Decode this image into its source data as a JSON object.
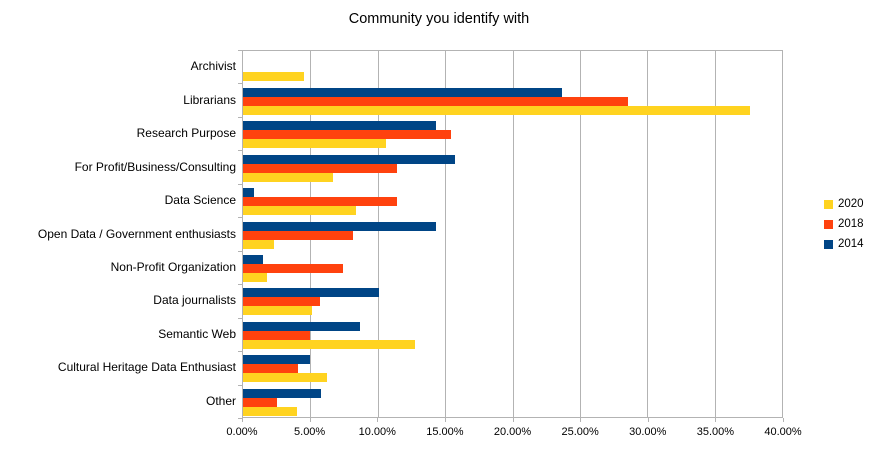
{
  "chart_data": {
    "type": "bar",
    "orientation": "horizontal",
    "title": "Community you identify with",
    "categories": [
      "Archivist",
      "Librarians",
      "Research Purpose",
      "For Profit/Business/Consulting",
      "Data Science",
      "Open Data / Government enthusiasts",
      "Non-Profit Organization",
      "Data journalists",
      "Semantic Web",
      "Cultural Heritage Data Enthusiast",
      "Other"
    ],
    "series": [
      {
        "name": "2020",
        "color": "#FFD320",
        "values": [
          4.5,
          37.6,
          10.6,
          6.7,
          8.4,
          2.3,
          1.8,
          5.1,
          12.8,
          6.2,
          4.0
        ]
      },
      {
        "name": "2018",
        "color": "#FF420E",
        "values": [
          0,
          28.6,
          15.4,
          11.4,
          11.4,
          8.2,
          7.4,
          5.7,
          5.0,
          4.1,
          2.5
        ]
      },
      {
        "name": "2014",
        "color": "#004586",
        "values": [
          0,
          23.7,
          14.3,
          15.7,
          0.8,
          14.3,
          1.5,
          10.1,
          8.7,
          5.0,
          5.8
        ]
      }
    ],
    "bar_draw_order": [
      "2014",
      "2018",
      "2020"
    ],
    "x_axis": {
      "min": 0,
      "max": 40,
      "tick_step": 5,
      "tick_labels": [
        "0.00%",
        "5.00%",
        "10.00%",
        "15.00%",
        "20.00%",
        "25.00%",
        "30.00%",
        "35.00%",
        "40.00%"
      ]
    },
    "legend": {
      "position": "right",
      "entries": [
        "2020",
        "2018",
        "2014"
      ]
    },
    "grid": {
      "vertical": true,
      "color": "#b3b3b3"
    },
    "background": "#ffffff"
  }
}
